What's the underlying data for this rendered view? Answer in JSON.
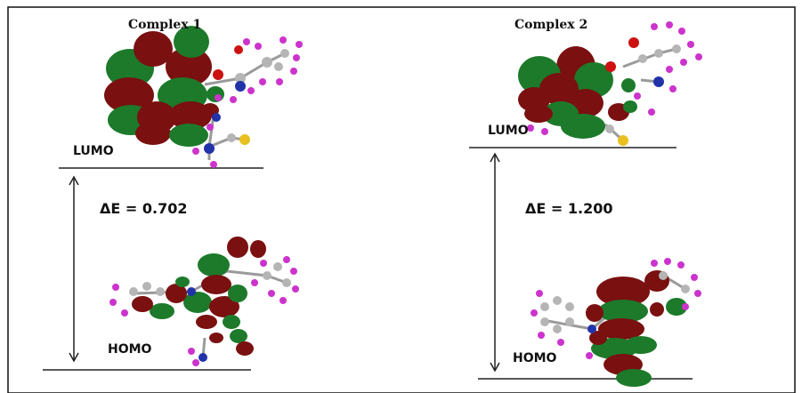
{
  "panels": [
    {
      "title": "Complex 1",
      "lumo_label": "LUMO",
      "homo_label": "HOMO",
      "gap_symbol": "ΔE",
      "gap_value": "0.702"
    },
    {
      "title": "Complex 2",
      "lumo_label": "LUMO",
      "homo_label": "HOMO",
      "gap_symbol": "ΔE",
      "gap_value": "1.200"
    }
  ],
  "colors": {
    "orbital_positive": "#1c7a2a",
    "orbital_negative": "#7a1010",
    "atom_hydrogen": "#cc33cc",
    "atom_carbon": "#b5b5b5",
    "atom_nitrogen": "#2233aa",
    "atom_oxygen": "#cc1111",
    "atom_sulfur": "#e8c020",
    "level_line": "#222222"
  }
}
